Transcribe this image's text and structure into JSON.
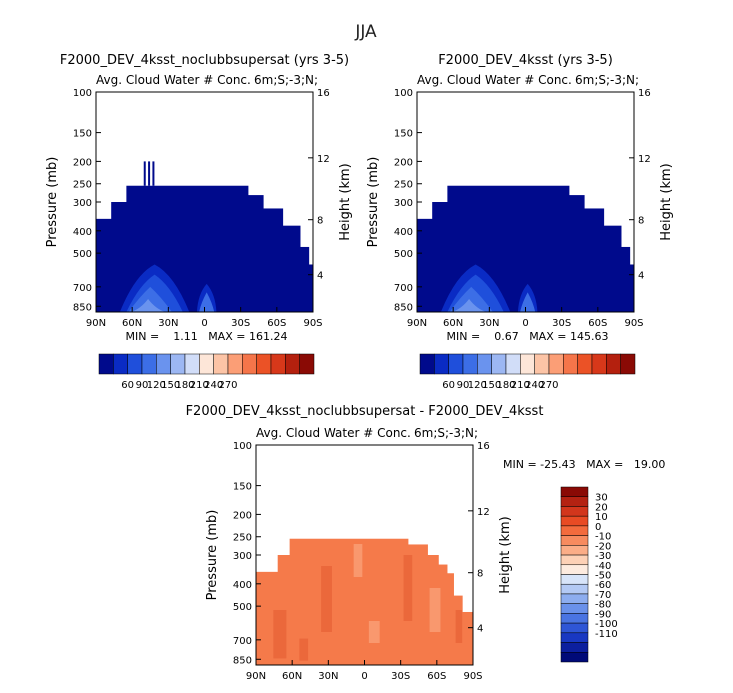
{
  "page": {
    "title": "JJA"
  },
  "diff_stats": {
    "label": "MIN = -25.43   MAX =   19.00"
  },
  "colors": {
    "deep_blue": "#000a8c",
    "diff_fill": "#f57a4a",
    "diff_fill_dark": "#e25a2f",
    "diff_fill_light": "#fbb08d",
    "abs_scale": [
      "#000a8c",
      "#0a2bc4",
      "#1f4fdb",
      "#3c6ee6",
      "#6a93ee",
      "#9cb7f3",
      "#d1ddf8",
      "#fde6d8",
      "#fcc4a6",
      "#fb9e76",
      "#f5754a",
      "#eb5226",
      "#d7381a",
      "#b4200e",
      "#8a0a05"
    ],
    "diff_scale": [
      "#8a0a05",
      "#b42212",
      "#d2361c",
      "#e84b24",
      "#f36b3d",
      "#f78b5f",
      "#fbad87",
      "#fdd1b6",
      "#fdebdf",
      "#d7e4f9",
      "#b3c9f4",
      "#8dadef",
      "#6a91ea",
      "#4a74e2",
      "#2f56d6",
      "#1938c2",
      "#0c1f9e",
      "#000a78"
    ]
  },
  "chart_data": [
    {
      "type": "heatmap",
      "name": "panel-noclubb",
      "title": "F2000_DEV_4ksst_noclubbsupersat (yrs 3-5)",
      "subtitle": "Avg. Cloud Water # Conc.",
      "subtitle_right": "6m;S;-3;N;",
      "ylabel": "Pressure (mb)",
      "y2label": "Height (km)",
      "x_ticks": [
        "90N",
        "60N",
        "30N",
        "0",
        "30S",
        "60S",
        "90S"
      ],
      "y_ticks": [
        "100",
        "150",
        "200",
        "250",
        "300",
        "400",
        "500",
        "700",
        "850"
      ],
      "y2_ticks": [
        "16",
        "12",
        "8",
        "4"
      ],
      "stats": "MIN =    1.11   MAX = 161.24",
      "colorbar_labels": [
        "60",
        "90",
        "120",
        "150",
        "180",
        "210",
        "240",
        "270"
      ],
      "has_spikes": true
    },
    {
      "type": "heatmap",
      "name": "panel-control",
      "title": "F2000_DEV_4ksst (yrs 3-5)",
      "subtitle": "Avg. Cloud Water # Conc.",
      "subtitle_right": "6m;S;-3;N;",
      "ylabel": "Pressure (mb)",
      "y2label": "Height (km)",
      "x_ticks": [
        "90N",
        "60N",
        "30N",
        "0",
        "30S",
        "60S",
        "90S"
      ],
      "y_ticks": [
        "100",
        "150",
        "200",
        "250",
        "300",
        "400",
        "500",
        "700",
        "850"
      ],
      "y2_ticks": [
        "16",
        "12",
        "8",
        "4"
      ],
      "stats": "MIN =    0.67   MAX = 145.63",
      "colorbar_labels": [
        "60",
        "90",
        "120",
        "150",
        "180",
        "210",
        "240",
        "270"
      ],
      "has_spikes": false
    },
    {
      "type": "heatmap",
      "name": "panel-diff",
      "title": "F2000_DEV_4ksst_noclubbsupersat - F2000_DEV_4ksst",
      "subtitle": "Avg. Cloud Water # Conc.",
      "subtitle_right": "6m;S;-3;N;",
      "ylabel": "Pressure (mb)",
      "y2label": "Height (km)",
      "x_ticks": [
        "90N",
        "60N",
        "30N",
        "0",
        "30S",
        "60S",
        "90S"
      ],
      "y_ticks": [
        "100",
        "150",
        "200",
        "250",
        "300",
        "400",
        "500",
        "700",
        "850"
      ],
      "y2_ticks": [
        "16",
        "12",
        "8",
        "4"
      ],
      "colorbar_labels": [
        "30",
        "20",
        "10",
        "0",
        "-10",
        "-20",
        "-30",
        "-40",
        "-50",
        "-60",
        "-70",
        "-80",
        "-90",
        "-100",
        "-110"
      ]
    }
  ]
}
